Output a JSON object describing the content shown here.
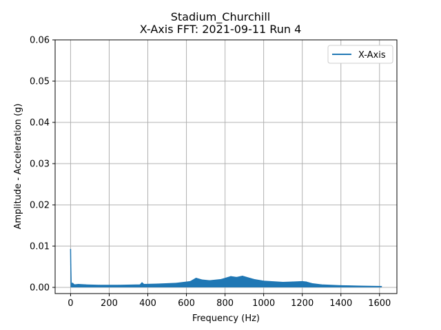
{
  "chart_data": {
    "type": "line",
    "title": "Stadium_Churchill",
    "subtitle": "X-Axis FFT: 2021-09-11 Run 4",
    "xlabel": "Frequency (Hz)",
    "ylabel": "Amplitude - Acceleration (g)",
    "xlim": [
      -80,
      1690
    ],
    "ylim": [
      -0.0015,
      0.06
    ],
    "xticks": [
      0,
      200,
      400,
      600,
      800,
      1000,
      1200,
      1400,
      1600
    ],
    "yticks": [
      0.0,
      0.01,
      0.02,
      0.03,
      0.04,
      0.05,
      0.06
    ],
    "xtick_labels": [
      "0",
      "200",
      "400",
      "600",
      "800",
      "1000",
      "1200",
      "1400",
      "1600"
    ],
    "ytick_labels": [
      "0.00",
      "0.01",
      "0.02",
      "0.03",
      "0.04",
      "0.05",
      "0.06"
    ],
    "grid": true,
    "legend": {
      "position": "top-right",
      "entries": [
        "X-Axis"
      ]
    },
    "series": [
      {
        "name": "X-Axis",
        "color": "#1f77b4",
        "x": [
          0,
          1,
          3,
          5,
          10,
          20,
          40,
          80,
          150,
          250,
          360,
          370,
          380,
          450,
          550,
          620,
          650,
          680,
          720,
          780,
          830,
          860,
          890,
          950,
          1000,
          1100,
          1150,
          1200,
          1220,
          1250,
          1300,
          1400,
          1500,
          1610
        ],
        "y": [
          0.0092,
          0.0055,
          0.0012,
          0.0008,
          0.001,
          0.0006,
          0.0007,
          0.0006,
          0.0005,
          0.0005,
          0.0006,
          0.0011,
          0.0007,
          0.0008,
          0.001,
          0.0014,
          0.0022,
          0.0018,
          0.0016,
          0.0019,
          0.0026,
          0.0024,
          0.0027,
          0.0019,
          0.0015,
          0.0012,
          0.0013,
          0.0014,
          0.0013,
          0.0009,
          0.0006,
          0.0004,
          0.0003,
          0.0002
        ],
        "floor": [
          0.0,
          0.0,
          0.0,
          0.0,
          0.0,
          0.0,
          0.0,
          0.0,
          0.0,
          0.0,
          0.0,
          0.0,
          0.0,
          0.0,
          0.0,
          0.0,
          0.0,
          0.0,
          0.0,
          0.0,
          0.0,
          0.0,
          0.0,
          0.0,
          0.0,
          0.0,
          0.0,
          0.0,
          0.0,
          0.0,
          0.0,
          0.0,
          0.0,
          0.0
        ]
      }
    ]
  }
}
